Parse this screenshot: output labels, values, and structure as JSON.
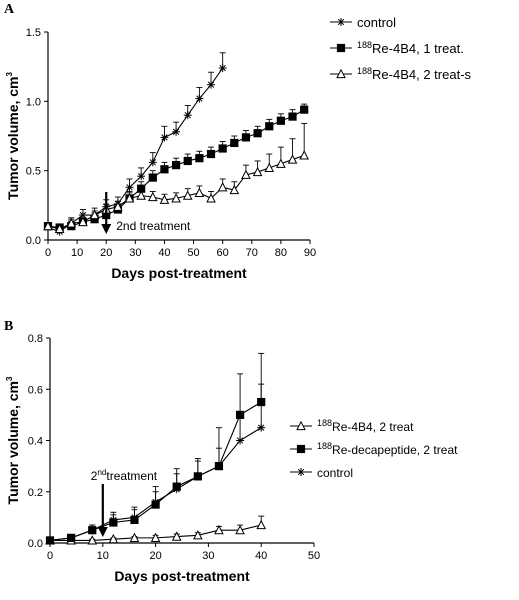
{
  "chart_data": [
    {
      "panel": "A",
      "type": "line",
      "xlabel": "Days post-treatment",
      "ylabel": "Tumor volume, cm",
      "ylabel_sup": "3",
      "xlim": [
        0,
        90
      ],
      "ylim": [
        0,
        1.5
      ],
      "x_ticks": [
        "0",
        "10",
        "20",
        "30",
        "40",
        "50",
        "60",
        "70",
        "80",
        "90"
      ],
      "y_ticks": [
        "0.0",
        "0.5",
        "1.0",
        "1.5"
      ],
      "legend_position": "top-right",
      "annotation": {
        "text": "2nd treatment",
        "x": 20
      },
      "series": [
        {
          "name": "control",
          "marker": "star",
          "x": [
            0,
            4,
            8,
            12,
            16,
            20,
            24,
            28,
            32,
            36,
            40,
            44,
            48,
            52,
            56,
            60
          ],
          "y": [
            0.09,
            0.06,
            0.12,
            0.18,
            0.18,
            0.24,
            0.26,
            0.38,
            0.46,
            0.56,
            0.74,
            0.78,
            0.9,
            1.02,
            1.12,
            1.24
          ],
          "err": [
            0.03,
            0.03,
            0.04,
            0.04,
            0.05,
            0.05,
            0.05,
            0.06,
            0.06,
            0.07,
            0.08,
            0.07,
            0.07,
            0.08,
            0.09,
            0.11
          ]
        },
        {
          "name": "Re-4B4, 1 treat.",
          "name_sup": "188",
          "marker": "square",
          "x": [
            0,
            4,
            8,
            12,
            16,
            20,
            24,
            28,
            32,
            36,
            40,
            44,
            48,
            52,
            56,
            60,
            64,
            68,
            72,
            76,
            80,
            84,
            88
          ],
          "y": [
            0.1,
            0.09,
            0.1,
            0.13,
            0.15,
            0.18,
            0.22,
            0.3,
            0.37,
            0.45,
            0.51,
            0.54,
            0.57,
            0.59,
            0.62,
            0.66,
            0.7,
            0.74,
            0.77,
            0.82,
            0.86,
            0.89,
            0.94
          ],
          "err": [
            0.02,
            0.02,
            0.03,
            0.03,
            0.03,
            0.04,
            0.04,
            0.05,
            0.05,
            0.05,
            0.05,
            0.05,
            0.05,
            0.05,
            0.05,
            0.05,
            0.05,
            0.05,
            0.05,
            0.05,
            0.05,
            0.05,
            0.04
          ]
        },
        {
          "name": "Re-4B4, 2 treat-s",
          "name_sup": "188",
          "marker": "triangle",
          "x": [
            0,
            4,
            8,
            12,
            16,
            20,
            24,
            28,
            32,
            36,
            40,
            44,
            48,
            52,
            56,
            60,
            64,
            68,
            72,
            76,
            80,
            84,
            88
          ],
          "y": [
            0.1,
            0.08,
            0.12,
            0.13,
            0.18,
            0.22,
            0.24,
            0.3,
            0.32,
            0.31,
            0.29,
            0.3,
            0.32,
            0.34,
            0.3,
            0.38,
            0.36,
            0.47,
            0.49,
            0.52,
            0.55,
            0.58,
            0.61
          ],
          "err": [
            0.02,
            0.02,
            0.03,
            0.03,
            0.03,
            0.04,
            0.04,
            0.04,
            0.04,
            0.04,
            0.04,
            0.04,
            0.05,
            0.05,
            0.05,
            0.06,
            0.06,
            0.07,
            0.08,
            0.1,
            0.12,
            0.15,
            0.23
          ]
        }
      ]
    },
    {
      "panel": "B",
      "type": "line",
      "xlabel": "Days post-treatment",
      "ylabel": "Tumor volume, cm",
      "ylabel_sup": "3",
      "xlim": [
        0,
        50
      ],
      "ylim": [
        0,
        0.8
      ],
      "x_ticks": [
        "0",
        "10",
        "20",
        "30",
        "40",
        "50"
      ],
      "y_ticks": [
        "0.0",
        "0.2",
        "0.4",
        "0.6",
        "0.8"
      ],
      "legend_position": "center-right",
      "annotation": {
        "text": "treatment",
        "prefix": "2",
        "prefix_sup": "nd",
        "x": 10
      },
      "series": [
        {
          "name": "Re-4B4, 2 treat",
          "name_sup": "188",
          "marker": "triangle",
          "x": [
            0,
            4,
            8,
            12,
            16,
            20,
            24,
            28,
            32,
            36,
            40
          ],
          "y": [
            0.01,
            0.01,
            0.01,
            0.015,
            0.02,
            0.02,
            0.025,
            0.03,
            0.05,
            0.05,
            0.07
          ],
          "err": [
            0.005,
            0.005,
            0.005,
            0.005,
            0.005,
            0.01,
            0.01,
            0.01,
            0.015,
            0.02,
            0.035
          ]
        },
        {
          "name": "Re-decapeptide, 2 treat",
          "name_sup": "188",
          "marker": "square",
          "x": [
            0,
            4,
            8,
            12,
            16,
            20,
            24,
            28,
            32,
            36,
            40
          ],
          "y": [
            0.01,
            0.02,
            0.05,
            0.08,
            0.09,
            0.15,
            0.22,
            0.26,
            0.3,
            0.5,
            0.55
          ],
          "err": [
            0.005,
            0.01,
            0.02,
            0.03,
            0.04,
            0.05,
            0.07,
            0.07,
            0.07,
            0.16,
            0.19
          ]
        },
        {
          "name": "control",
          "marker": "star",
          "x": [
            0,
            4,
            8,
            12,
            16,
            20,
            24,
            28,
            32,
            36,
            40
          ],
          "y": [
            0.01,
            0.02,
            0.05,
            0.09,
            0.1,
            0.16,
            0.21,
            0.26,
            0.3,
            0.4,
            0.45
          ],
          "err": [
            0.005,
            0.01,
            0.02,
            0.03,
            0.04,
            0.06,
            0.06,
            0.06,
            0.15,
            0.1,
            0.17
          ]
        }
      ]
    }
  ]
}
